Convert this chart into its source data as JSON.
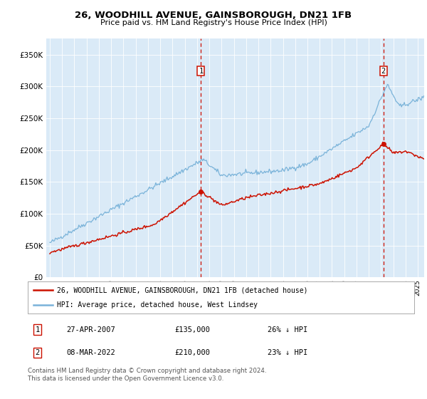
{
  "title": "26, WOODHILL AVENUE, GAINSBOROUGH, DN21 1FB",
  "subtitle": "Price paid vs. HM Land Registry's House Price Index (HPI)",
  "bg_color": "#daeaf7",
  "hpi_color": "#7ab3d9",
  "price_color": "#cc1100",
  "vline_color": "#cc1100",
  "ylim": [
    0,
    375000
  ],
  "yticks": [
    0,
    50000,
    100000,
    150000,
    200000,
    250000,
    300000,
    350000
  ],
  "transaction1": {
    "date": "27-APR-2007",
    "price": 135000,
    "pct": "26% ↓ HPI"
  },
  "transaction2": {
    "date": "08-MAR-2022",
    "price": 210000,
    "pct": "23% ↓ HPI"
  },
  "legend_line1": "26, WOODHILL AVENUE, GAINSBOROUGH, DN21 1FB (detached house)",
  "legend_line2": "HPI: Average price, detached house, West Lindsey",
  "footer": "Contains HM Land Registry data © Crown copyright and database right 2024.\nThis data is licensed under the Open Government Licence v3.0.",
  "transaction1_x": 2007.32,
  "transaction2_x": 2022.18
}
